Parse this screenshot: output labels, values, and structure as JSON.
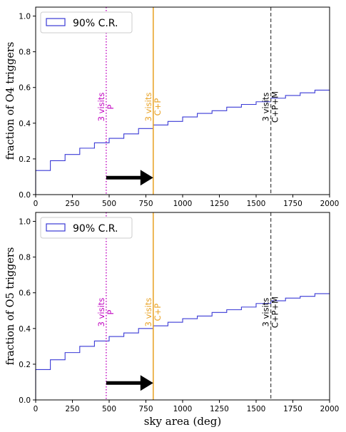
{
  "chart_data": [
    {
      "type": "line",
      "drawstyle": "steps",
      "ylabel": "fraction of O4 triggers",
      "xlabel": "",
      "xlim": [
        0,
        2000
      ],
      "ylim": [
        0,
        1.05
      ],
      "xticks": [
        "0",
        "250",
        "500",
        "750",
        "1000",
        "1250",
        "1500",
        "1750",
        "2000"
      ],
      "yticks": [
        "0.0",
        "0.2",
        "0.4",
        "0.6",
        "0.8",
        "1.0"
      ],
      "legend": {
        "label": "90% C.R.",
        "location": "upper-left"
      },
      "series": [
        {
          "name": "90% C.R.",
          "color": "#3a3ad6",
          "x": [
            0,
            100,
            200,
            300,
            400,
            500,
            600,
            700,
            800,
            900,
            1000,
            1100,
            1200,
            1300,
            1400,
            1500,
            1600,
            1700,
            1800,
            1900,
            2000
          ],
          "values": [
            0.135,
            0.19,
            0.225,
            0.26,
            0.29,
            0.315,
            0.34,
            0.37,
            0.39,
            0.41,
            0.435,
            0.455,
            0.47,
            0.49,
            0.505,
            0.52,
            0.54,
            0.555,
            0.57,
            0.585,
            0.585
          ]
        }
      ],
      "vlines": [
        {
          "x": 480,
          "color": "#c000c0",
          "style": "dotted",
          "labels": [
            "3 visits",
            "P"
          ]
        },
        {
          "x": 800,
          "color": "#e8a020",
          "style": "solid",
          "labels": [
            "3 visits",
            "C+P"
          ]
        },
        {
          "x": 1600,
          "color": "#555555",
          "style": "dashed",
          "labels": [
            "3 visits",
            "C+P+M"
          ],
          "label_color": "#000000"
        }
      ],
      "arrow": {
        "from": 480,
        "to": 800,
        "y": 0.095
      }
    },
    {
      "type": "line",
      "drawstyle": "steps",
      "ylabel": "fraction of O5 triggers",
      "xlabel": "sky area (deg)",
      "xlim": [
        0,
        2000
      ],
      "ylim": [
        0,
        1.05
      ],
      "xticks": [
        "0",
        "250",
        "500",
        "750",
        "1000",
        "1250",
        "1500",
        "1750",
        "2000"
      ],
      "yticks": [
        "0.0",
        "0.2",
        "0.4",
        "0.6",
        "0.8",
        "1.0"
      ],
      "legend": {
        "label": "90% C.R.",
        "location": "upper-left"
      },
      "series": [
        {
          "name": "90% C.R.",
          "color": "#3a3ad6",
          "x": [
            0,
            100,
            200,
            300,
            400,
            500,
            600,
            700,
            800,
            900,
            1000,
            1100,
            1200,
            1300,
            1400,
            1500,
            1600,
            1700,
            1800,
            1900,
            2000
          ],
          "values": [
            0.17,
            0.225,
            0.265,
            0.3,
            0.33,
            0.355,
            0.375,
            0.4,
            0.415,
            0.435,
            0.455,
            0.47,
            0.49,
            0.505,
            0.52,
            0.54,
            0.555,
            0.57,
            0.58,
            0.595,
            0.595
          ]
        }
      ],
      "vlines": [
        {
          "x": 480,
          "color": "#c000c0",
          "style": "dotted",
          "labels": [
            "3 visits",
            "P"
          ]
        },
        {
          "x": 800,
          "color": "#e8a020",
          "style": "solid",
          "labels": [
            "3 visits",
            "C+P"
          ]
        },
        {
          "x": 1600,
          "color": "#555555",
          "style": "dashed",
          "labels": [
            "3 visits",
            "C+P+M"
          ],
          "label_color": "#000000"
        }
      ],
      "arrow": {
        "from": 480,
        "to": 800,
        "y": 0.095
      }
    }
  ]
}
